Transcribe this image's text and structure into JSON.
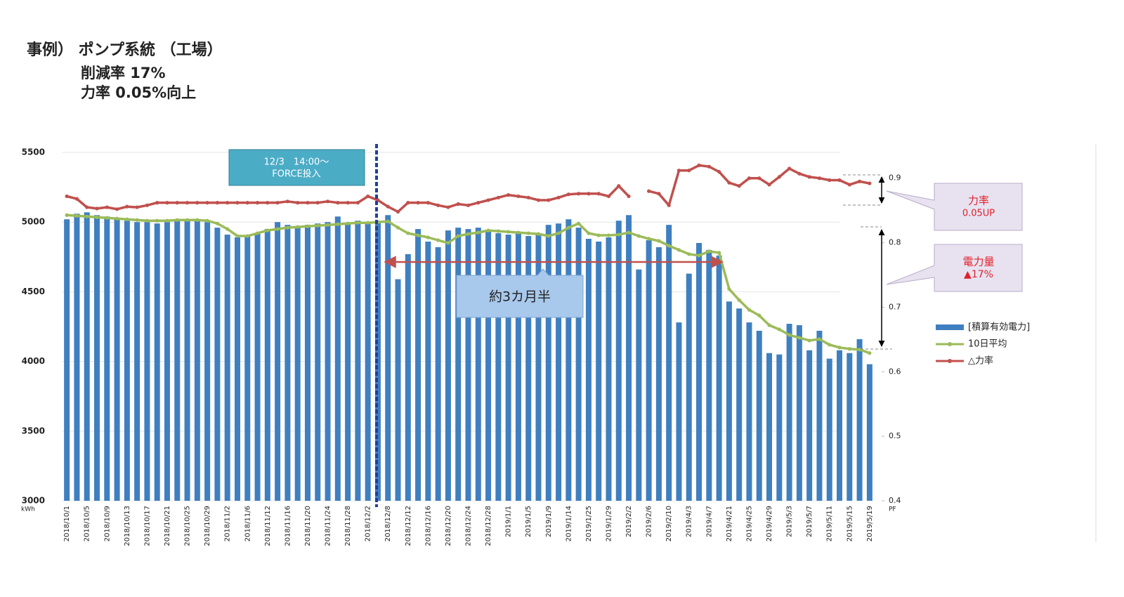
{
  "chart_data": {
    "type": "bar",
    "title": "事例） ポンプ系統 （工場）",
    "subtitle": [
      "削減率 17%",
      "力率 0.05%向上"
    ],
    "y_label": "kWh",
    "y2_label": "PF",
    "categories": [
      "2018/10/1",
      null,
      "2018/10/5",
      null,
      "2018/10/9",
      null,
      "2018/10/13",
      null,
      "2018/10/17",
      null,
      "2018/10/21",
      null,
      "2018/10/25",
      null,
      "2018/10/29",
      null,
      "2018/11/2",
      null,
      "2018/11/6",
      null,
      "2018/11/12",
      null,
      "2018/11/16",
      null,
      "2018/11/20",
      null,
      "2018/11/24",
      null,
      "2018/11/28",
      null,
      "2018/12/2",
      null,
      "2018/12/8",
      null,
      "2018/12/12",
      null,
      "2018/12/16",
      null,
      "2018/12/20",
      null,
      "2018/12/24",
      null,
      "2018/12/28",
      null,
      "2019/1/1",
      null,
      "2019/1/5",
      null,
      "2019/1/9",
      null,
      "2019/1/14",
      null,
      "2019/1/25",
      null,
      "2019/1/29",
      null,
      "2019/2/2",
      null,
      "2019/2/6",
      null,
      "2019/2/10",
      null,
      "2019/4/3",
      null,
      "2019/4/7",
      null,
      "2019/4/21",
      null,
      "2019/4/25",
      null,
      "2019/4/29",
      null,
      "2019/5/3",
      null,
      "2019/5/7",
      null,
      "2019/5/11",
      null,
      "2019/5/15",
      null,
      "2019/5/19"
    ],
    "series": [
      {
        "name": "[積算有効電力]",
        "type": "bar",
        "color": "#3f7fc0",
        "values": [
          5020,
          5060,
          5070,
          5050,
          5040,
          5020,
          5010,
          5000,
          5000,
          4990,
          5000,
          5010,
          5020,
          5010,
          5000,
          4960,
          4910,
          4890,
          4900,
          4920,
          4950,
          5000,
          4980,
          4970,
          4980,
          4990,
          5000,
          5040,
          4990,
          5010,
          5000,
          5010,
          5050,
          4590,
          4770,
          4950,
          4860,
          4820,
          4940,
          4960,
          4950,
          4960,
          4930,
          4920,
          4910,
          4930,
          4900,
          4920,
          4980,
          4990,
          5020,
          4960,
          4880,
          4860,
          4890,
          5010,
          5050,
          4660,
          4870,
          4820,
          4980,
          4280,
          4630,
          4850,
          4800,
          4760,
          4430,
          4380,
          4280,
          4220,
          4060,
          4050,
          4270,
          4260,
          4080,
          4220,
          4020,
          4080,
          4060,
          4160,
          3980
        ]
      },
      {
        "name": "10日平均",
        "type": "line",
        "color": "#9bbb59",
        "values": [
          5050,
          5045,
          5040,
          5035,
          5030,
          5025,
          5020,
          5015,
          5010,
          5010,
          5010,
          5015,
          5015,
          5015,
          5010,
          4990,
          4950,
          4900,
          4900,
          4920,
          4940,
          4950,
          4960,
          4965,
          4970,
          4975,
          4980,
          4985,
          4990,
          4995,
          4995,
          5000,
          5005,
          4960,
          4920,
          4905,
          4890,
          4870,
          4850,
          4900,
          4915,
          4925,
          4940,
          4935,
          4930,
          4925,
          4920,
          4915,
          4900,
          4920,
          4960,
          4990,
          4920,
          4905,
          4905,
          4910,
          4925,
          4900,
          4880,
          4865,
          4830,
          4800,
          4770,
          4760,
          4790,
          4780,
          4520,
          4440,
          4370,
          4330,
          4260,
          4230,
          4190,
          4170,
          4150,
          4160,
          4120,
          4100,
          4090,
          4085,
          4060
        ]
      },
      {
        "name": "△力率",
        "type": "line",
        "axis": "y2",
        "color": "#c0504d",
        "values": [
          0.872,
          0.868,
          0.855,
          0.853,
          0.855,
          0.852,
          0.856,
          0.855,
          0.858,
          0.862,
          0.862,
          0.862,
          0.862,
          0.862,
          0.862,
          0.862,
          0.862,
          0.862,
          0.862,
          0.862,
          0.862,
          0.862,
          0.864,
          0.862,
          0.862,
          0.862,
          0.864,
          0.862,
          0.862,
          0.862,
          0.872,
          0.866,
          0.856,
          0.848,
          0.862,
          0.862,
          0.862,
          0.858,
          0.855,
          0.86,
          0.858,
          0.862,
          0.866,
          0.87,
          0.874,
          0.872,
          0.87,
          0.866,
          0.866,
          0.87,
          0.875,
          0.876,
          0.876,
          0.876,
          0.872,
          0.888,
          0.872,
          null,
          0.88,
          0.876,
          0.858,
          0.912,
          0.912,
          0.92,
          0.918,
          0.91,
          0.893,
          0.888,
          0.9,
          0.9,
          0.89,
          0.902,
          0.915,
          0.907,
          0.902,
          0.9,
          0.897,
          0.897,
          0.89,
          0.895,
          0.892
        ]
      }
    ],
    "ylim": [
      3000,
      5500
    ],
    "yticks": [
      3000,
      3500,
      4000,
      4500,
      5000,
      5500
    ],
    "y2lim": [
      0.4,
      0.94
    ],
    "y2ticks": [
      0.4,
      0.5,
      0.6,
      0.7,
      0.8,
      0.9
    ],
    "grid": true,
    "legend": "right",
    "annotations": [
      {
        "lines": [
          "12/3　14:00～",
          "FORCE投入"
        ]
      },
      {
        "lines": [
          "約3カ月半"
        ]
      },
      {
        "lines": [
          "力率",
          "0.05UP"
        ]
      },
      {
        "lines": [
          "電力量",
          "▲17%"
        ]
      }
    ]
  }
}
